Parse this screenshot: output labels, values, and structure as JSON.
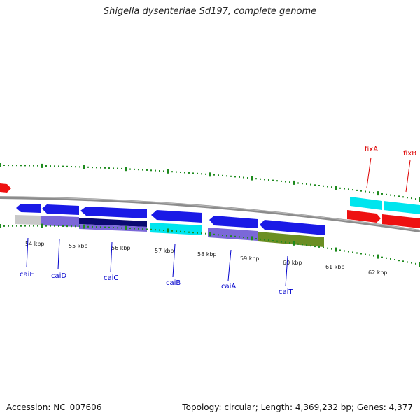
{
  "title": "Shigella dysenteriae Sd197, complete genome",
  "footer": {
    "accession": "Accession: NC_007606",
    "summary": "Topology: circular; Length: 4,369,232 bp; Genes: 4,377"
  },
  "colors": {
    "background": "#ffffff",
    "backbone": "#8c8c8c",
    "scale_ticks": "#1e8a1e",
    "cai_labels": "#0000cc",
    "fix_labels": "#dd0000",
    "gene_blue": "#1a1ae6",
    "gene_cyan": "#00e5ee",
    "gene_red": "#ee1111",
    "gene_lavender": "#7b68d8",
    "gene_navy": "#0a0a70",
    "gene_olive": "#6b8e23",
    "gene_grey": "#c8c8c8"
  },
  "scale_labels": [
    "54 kbp",
    "55 kbp",
    "56 kbp",
    "57 kbp",
    "58 kbp",
    "59 kbp",
    "60 kbp",
    "61 kbp",
    "62 kbp"
  ],
  "gene_labels": [
    {
      "name": "caiE",
      "color": "#0000cc"
    },
    {
      "name": "caiD",
      "color": "#0000cc"
    },
    {
      "name": "caiC",
      "color": "#0000cc"
    },
    {
      "name": "caiB",
      "color": "#0000cc"
    },
    {
      "name": "caiA",
      "color": "#0000cc"
    },
    {
      "name": "caiT",
      "color": "#0000cc"
    },
    {
      "name": "fixA",
      "color": "#dd0000"
    },
    {
      "name": "fixB",
      "color": "#dd0000"
    }
  ]
}
